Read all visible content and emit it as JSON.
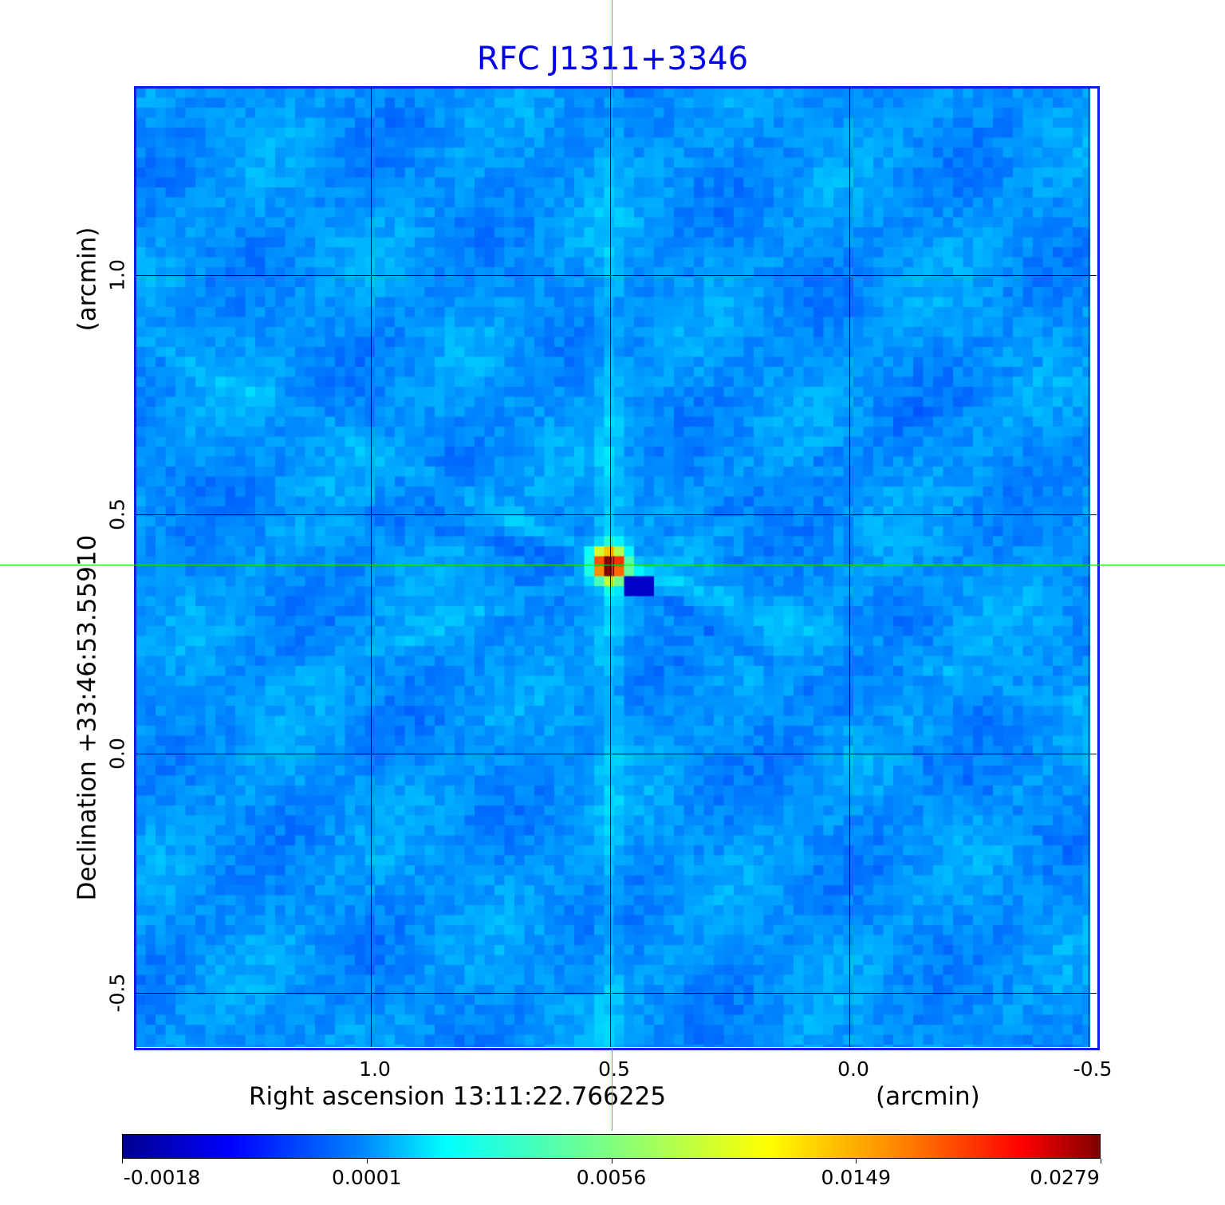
{
  "chart_data": {
    "type": "heatmap",
    "title": "RFC J1311+3346",
    "xlabel": "Right ascension  13:11:22.766225",
    "xunit": "(arcmin)",
    "ylabel": "Declination  +33:46:53.55910",
    "yunit": "(arcmin)",
    "x_ticks": [
      {
        "value": 1.0,
        "label": "1.0"
      },
      {
        "value": 0.5,
        "label": "0.5"
      },
      {
        "value": 0.0,
        "label": "0.0"
      },
      {
        "value": -0.5,
        "label": "-0.5"
      }
    ],
    "y_ticks": [
      {
        "value": 1.0,
        "label": "1.0"
      },
      {
        "value": 0.5,
        "label": "0.5"
      },
      {
        "value": 0.0,
        "label": "0.0"
      },
      {
        "value": -0.5,
        "label": "-0.5"
      }
    ],
    "xlim": [
      1.49,
      -0.52
    ],
    "ylim": [
      -0.61,
      1.39
    ],
    "grid": true,
    "crosshair": {
      "x": 0.5,
      "y": 0.395
    },
    "peak": {
      "x": 0.5,
      "y": 0.395
    },
    "colormap": "jet",
    "colorbar": {
      "placement": "bottom",
      "ticks": [
        "-0.0018",
        "0.0001",
        "0.0056",
        "0.0149",
        "0.0279"
      ],
      "range": [
        -0.0018,
        0.0279
      ]
    }
  },
  "colors": {
    "title": "#0000e6",
    "frame": "#0a1ee6",
    "crosshair": "#22dd22",
    "background": "#1a8cf2"
  }
}
